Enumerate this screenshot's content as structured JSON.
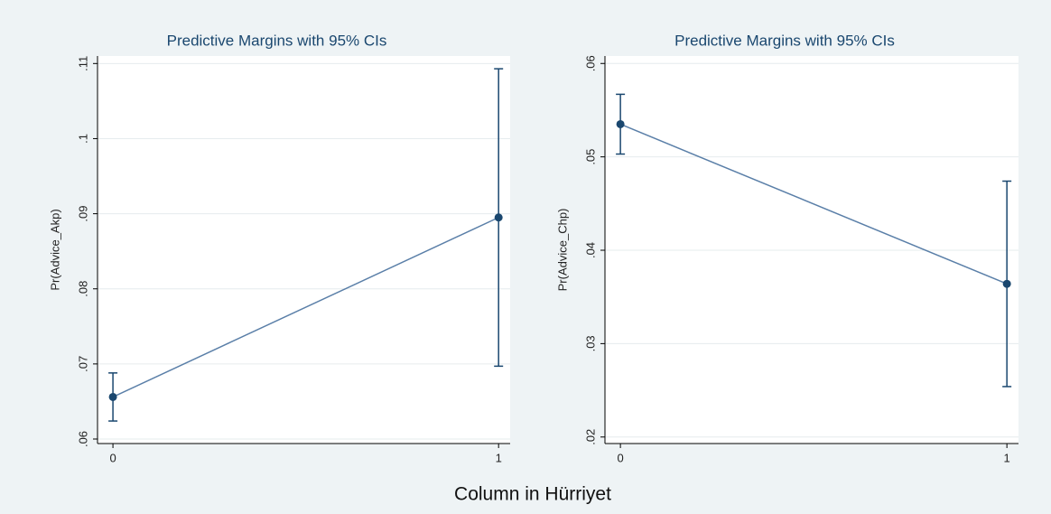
{
  "x_label": "Column in Hürriyet",
  "chart_data": [
    {
      "type": "line",
      "title": "Predictive Margins with 95% CIs",
      "ylabel": "Pr(Advice_Akp)",
      "x": [
        0,
        1
      ],
      "values": [
        0.0656,
        0.0895
      ],
      "errors": [
        0.0032,
        0.0198
      ],
      "color": "#1a476f",
      "xlim": [
        -0.04,
        1.03
      ],
      "xticks": [
        0,
        1
      ],
      "ylim": [
        0.0594,
        0.111
      ],
      "yticks": [
        {
          "value": 0.06,
          "label": ".06"
        },
        {
          "value": 0.07,
          "label": ".07"
        },
        {
          "value": 0.08,
          "label": ".08"
        },
        {
          "value": 0.09,
          "label": ".09"
        },
        {
          "value": 0.1,
          "label": ".1"
        },
        {
          "value": 0.11,
          "label": ".11"
        }
      ],
      "grid": true
    },
    {
      "type": "line",
      "title": "Predictive Margins with 95% CIs",
      "ylabel": "Pr(Advice_Chp)",
      "x": [
        0,
        1
      ],
      "values": [
        0.0535,
        0.0364
      ],
      "errors": [
        0.0032,
        0.011
      ],
      "color": "#1a476f",
      "xlim": [
        -0.04,
        1.03
      ],
      "xticks": [
        0,
        1
      ],
      "ylim": [
        0.0193,
        0.0608
      ],
      "yticks": [
        {
          "value": 0.02,
          "label": ".02"
        },
        {
          "value": 0.03,
          "label": ".03"
        },
        {
          "value": 0.04,
          "label": ".04"
        },
        {
          "value": 0.05,
          "label": ".05"
        },
        {
          "value": 0.06,
          "label": ".06"
        }
      ],
      "grid": true
    }
  ]
}
